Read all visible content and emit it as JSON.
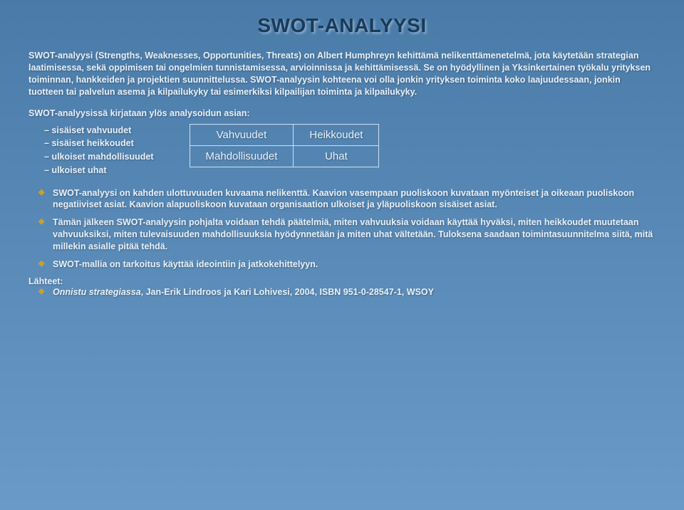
{
  "title": "SWOT-ANALYYSI",
  "intro": "SWOT-analyysi (Strengths, Weaknesses, Opportunities, Threats) on Albert Humphreyn kehittämä nelikenttämenetelmä, jota käytetään strategian laatimisessa, sekä oppimisen tai ongelmien tunnistamisessa, arvioinnissa ja kehittämisessä. Se on hyödyllinen ja Yksinkertainen työkalu yrityksen toiminnan, hankkeiden ja projektien suunnittelussa. SWOT-analyysin kohteena voi olla jonkin yrityksen toiminta koko laajuudessaan, jonkin tuotteen tai palvelun asema ja kilpailukyky tai esimerkiksi kilpailijan toiminta ja kilpailukyky.",
  "subheading": "SWOT-analyysissä kirjataan ylös analysoidun asian:",
  "dash_items": {
    "i0": "sisäiset vahvuudet",
    "i1": "sisäiset heikkoudet",
    "i2": "ulkoiset mahdollisuudet",
    "i3": "ulkoiset uhat"
  },
  "grid": {
    "c00": "Vahvuudet",
    "c01": "Heikkoudet",
    "c10": "Mahdollisuudet",
    "c11": "Uhat"
  },
  "bullets": {
    "b0": "SWOT-analyysi on kahden ulottuvuuden kuvaama nelikenttä. Kaavion vasempaan puoliskoon kuvataan myönteiset ja oikeaan puoliskoon negatiiviset asiat. Kaavion alapuoliskoon kuvataan organisaation ulkoiset ja yläpuoliskoon sisäiset asiat.",
    "b1": "Tämän jälkeen SWOT-analyysin pohjalta voidaan tehdä päätelmiä, miten vahvuuksia voidaan käyttää hyväksi, miten heikkoudet muutetaan vahvuuksiksi, miten tulevaisuuden mahdollisuuksia hyödynnetään ja miten uhat vältetään. Tuloksena saadaan toimintasuunnitelma siitä, mitä millekin asialle pitää tehdä.",
    "b2": "SWOT-mallia on tarkoitus käyttää ideointiin ja jatkokehittelyyn."
  },
  "sources_label": "Lähteet:",
  "source": {
    "title": "Onnistu strategiassa",
    "rest": ", Jan-Erik Lindroos ja Kari Lohivesi, 2004, ISBN 951-0-28547-1, WSOY"
  },
  "colors": {
    "bg_top": "#4a7ba8",
    "bg_bottom": "#6a9bc8",
    "heading": "#1a3a5a",
    "text": "#e8f0f8",
    "bullet_diamond": "#c8a030",
    "grid_border": "#cfe0ef"
  }
}
